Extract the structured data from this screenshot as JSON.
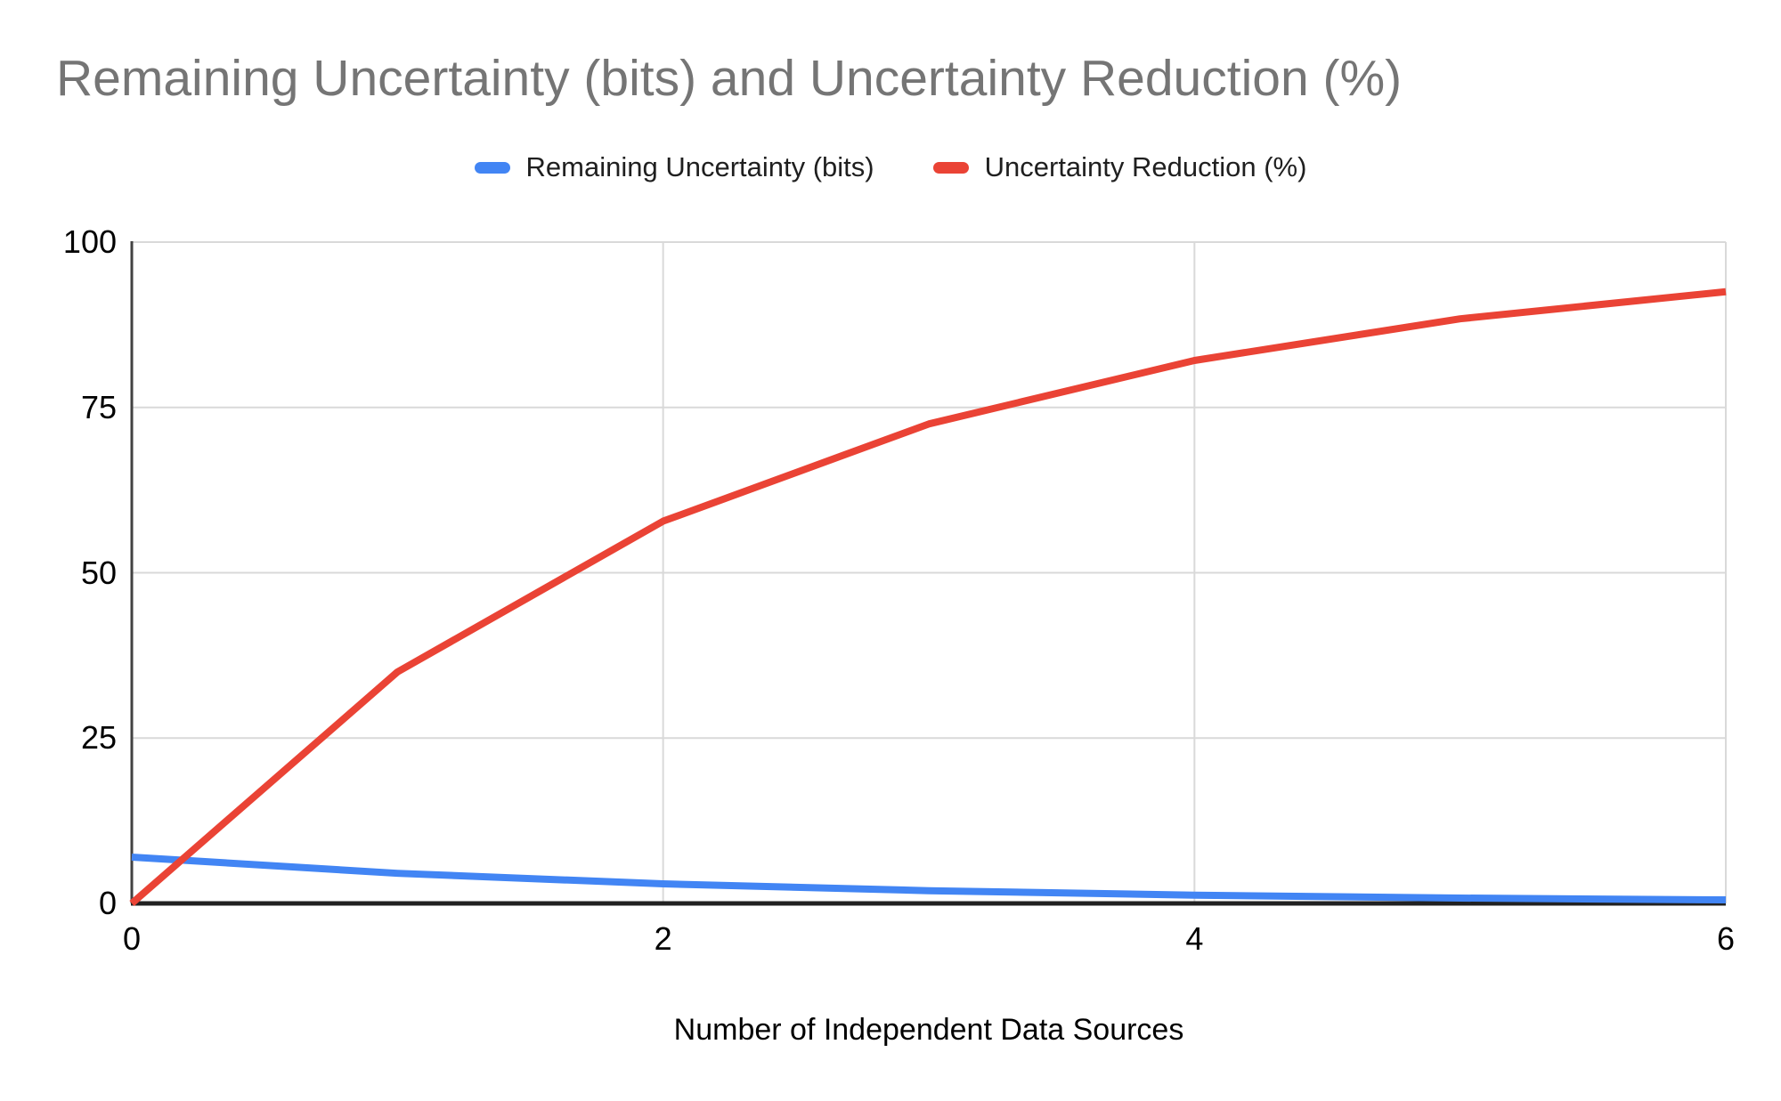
{
  "title": "Remaining Uncertainty (bits) and Uncertainty Reduction (%)",
  "legend": {
    "items": [
      {
        "label": "Remaining Uncertainty (bits)",
        "color": "#4285f4"
      },
      {
        "label": "Uncertainty Reduction (%)",
        "color": "#ea4335"
      }
    ]
  },
  "colors": {
    "series_blue": "#4285f4",
    "series_red": "#ea4335",
    "title_gray": "#757575",
    "gridline": "#d9d9d9",
    "y_axis_line": "#424242",
    "x_baseline": "#212121",
    "tick_text": "#000000"
  },
  "chart_data": {
    "type": "line",
    "title": "Remaining Uncertainty (bits) and Uncertainty Reduction (%)",
    "xlabel": "Number of Independent Data Sources",
    "ylabel": "",
    "x": [
      0,
      1,
      2,
      3,
      4,
      5,
      6
    ],
    "series": [
      {
        "name": "Remaining Uncertainty (bits)",
        "color": "#4285f4",
        "values": [
          7.0,
          4.55,
          2.96,
          1.92,
          1.25,
          0.81,
          0.53
        ]
      },
      {
        "name": "Uncertainty Reduction (%)",
        "color": "#ea4335",
        "values": [
          0,
          35,
          57.8,
          72.5,
          82.1,
          88.4,
          92.5
        ]
      }
    ],
    "xlim": [
      0,
      6
    ],
    "ylim": [
      0,
      100
    ],
    "yticks": [
      0,
      25,
      50,
      75,
      100
    ],
    "xticks": [
      0,
      2,
      4,
      6
    ],
    "grid": true,
    "legend_position": "top"
  }
}
